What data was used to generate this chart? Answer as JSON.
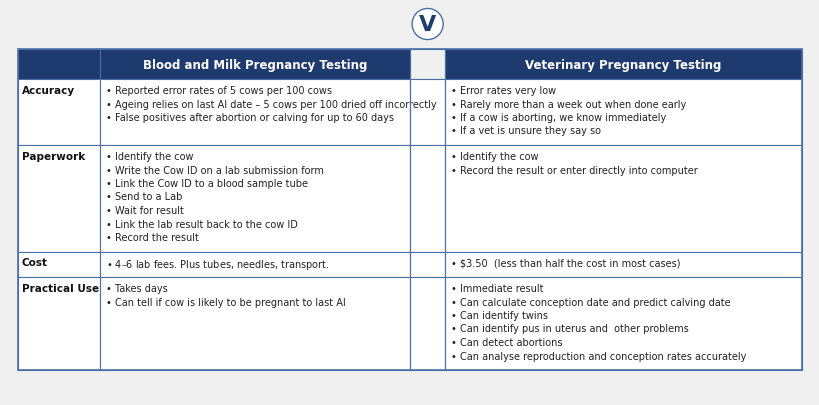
{
  "header_bg": "#1f3a6e",
  "header_text_color": "#ffffff",
  "body_bg": "#ffffff",
  "outer_bg": "#f0f0f0",
  "border_color": "#4a6fa5",
  "body_text_color": "#222222",
  "vs_text": "V",
  "header": [
    "Blood and Milk Pregnancy Testing",
    "Veterinary Pregnancy Testing"
  ],
  "bullet": "• ",
  "figsize": [
    8.2,
    4.06
  ],
  "dpi": 100,
  "rows": [
    {
      "category": "Accuracy",
      "col1": [
        "Reported error rates of 5 cows per 100 cows",
        "Ageing relies on last AI date – 5 cows per 100 dried off incorrectly",
        "False positives after abortion or calving for up to 60 days"
      ],
      "col2": [
        "Error rates very low",
        "Rarely more than a week out when done early",
        "If a cow is aborting, we know immediately",
        "If a vet is unsure they say so"
      ]
    },
    {
      "category": "Paperwork",
      "col1": [
        "Identify the cow",
        "Write the Cow ID on a lab submission form",
        "Link the Cow ID to a blood sample tube",
        "Send to a Lab",
        "Wait for result",
        "Link the lab result back to the cow ID",
        "Record the result"
      ],
      "col2": [
        "Identify the cow",
        "Record the result or enter directly into computer"
      ]
    },
    {
      "category": "Cost",
      "col1": [
        "$4–$6 lab fees. Plus tubes, needles, transport."
      ],
      "col2": [
        "$3.50  (less than half the cost in most cases)"
      ]
    },
    {
      "category": "Practical Use",
      "col1": [
        "Takes days",
        "Can tell if cow is likely to be pregnant to last AI"
      ],
      "col2": [
        "Immediate result",
        "Can calculate conception date and predict calving date",
        "Can identify twins",
        "Can identify pus in uterus and  other problems",
        "Can detect abortions",
        "Can analyse reproduction and conception rates accurately"
      ]
    }
  ]
}
